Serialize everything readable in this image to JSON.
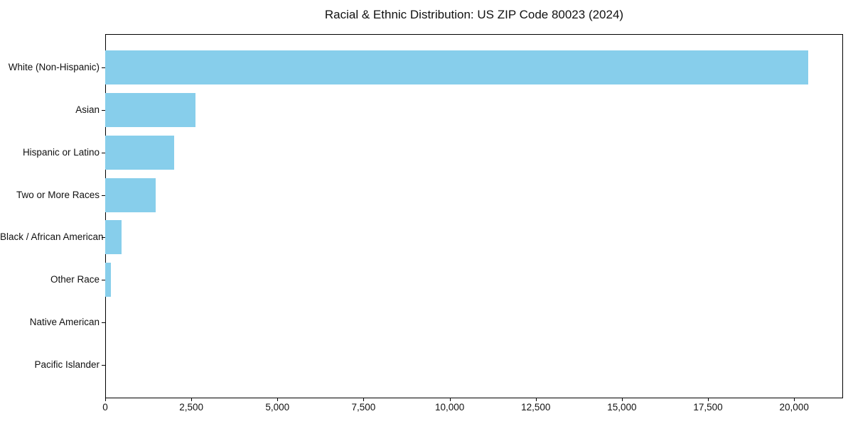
{
  "chart": {
    "title": "Racial & Ethnic Distribution: US ZIP Code 80023 (2024)"
  },
  "chart_data": {
    "type": "bar",
    "orientation": "horizontal",
    "title": "Racial & Ethnic Distribution: US ZIP Code 80023 (2024)",
    "xlabel": "",
    "ylabel": "",
    "categories": [
      "White (Non-Hispanic)",
      "Asian",
      "Hispanic or Latino",
      "Two or More Races",
      "Black / African American",
      "Other Race",
      "Native American",
      "Pacific Islander"
    ],
    "values": [
      20400,
      2620,
      2000,
      1460,
      480,
      170,
      0,
      0
    ],
    "xlim": [
      0,
      21420
    ],
    "x_ticks": [
      0,
      2500,
      5000,
      7500,
      10000,
      12500,
      15000,
      17500,
      20000
    ],
    "x_tick_labels": [
      "0",
      "2,500",
      "5,000",
      "7,500",
      "10,000",
      "12,500",
      "15,000",
      "17,500",
      "20,000"
    ],
    "bar_color": "#87CEEB",
    "frame_color": "#000000",
    "grid": false,
    "legend": false
  }
}
